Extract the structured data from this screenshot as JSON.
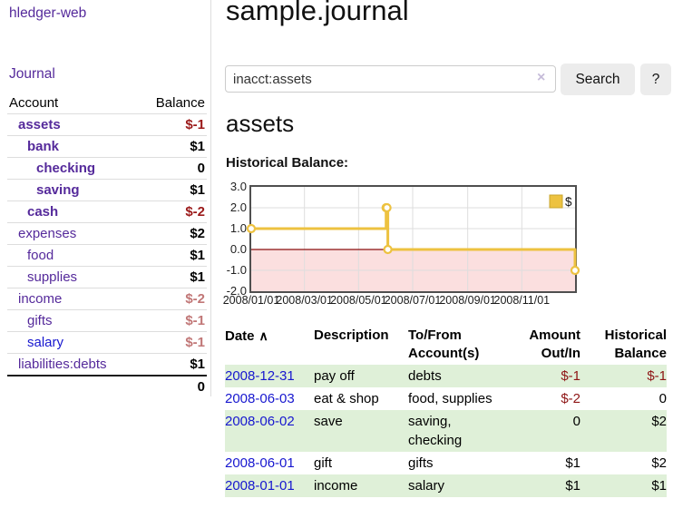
{
  "colors": {
    "link_purple": "#552a9b",
    "link_blue": "#1717cf",
    "negative_strong": "#9b1a1a",
    "negative_soft": "#c17777",
    "register_negative": "#8e1515",
    "stripe_green": "#dff0d8",
    "series_yellow": "#edc240"
  },
  "sidebar": {
    "brand": "hledger-web",
    "nav_journal": "Journal",
    "accounts_table": {
      "col_account": "Account",
      "col_balance": "Balance",
      "rows": [
        {
          "name": "assets",
          "depth": 1,
          "balance": "$-1",
          "bold": true,
          "neg": "strong"
        },
        {
          "name": "bank",
          "depth": 2,
          "balance": "$1",
          "bold": true
        },
        {
          "name": "checking",
          "depth": 3,
          "balance": "0",
          "bold": true
        },
        {
          "name": "saving",
          "depth": 3,
          "balance": "$1",
          "bold": true
        },
        {
          "name": "cash",
          "depth": 2,
          "balance": "$-2",
          "bold": true,
          "neg": "strong"
        },
        {
          "name": "expenses",
          "depth": 1,
          "balance": "$2"
        },
        {
          "name": "food",
          "depth": 2,
          "balance": "$1"
        },
        {
          "name": "supplies",
          "depth": 2,
          "balance": "$1"
        },
        {
          "name": "income",
          "depth": 1,
          "balance": "$-2",
          "neg": "soft"
        },
        {
          "name": "gifts",
          "depth": 2,
          "balance": "$-1",
          "neg": "soft"
        },
        {
          "name": "salary",
          "depth": 2,
          "balance": "$-1",
          "neg": "soft",
          "link_color": "blue"
        },
        {
          "name": "liabilities:debts",
          "depth": 1,
          "balance": "$1"
        }
      ],
      "total": "0"
    }
  },
  "main": {
    "title": "sample.journal",
    "search": {
      "value": "inacct:assets",
      "clear_label": "×",
      "submit_label": "Search",
      "help_label": "?"
    },
    "account_heading": "assets",
    "chart_heading": "Historical Balance:"
  },
  "chart_data": {
    "type": "line",
    "line_style": "step",
    "title": "Historical Balance",
    "grid": true,
    "legend_position": "top-right",
    "legend": [
      {
        "label": "$",
        "color": "#edc240"
      }
    ],
    "x_start": "2008-01-01",
    "x_end": "2008-12-31",
    "xticks": [
      "2008/01/01",
      "2008/03/01",
      "2008/05/01",
      "2008/07/01",
      "2008/09/01",
      "2008/11/01"
    ],
    "yticks": [
      "3.0",
      "2.0",
      "1.0",
      "0.0",
      "-1.0",
      "-2.0"
    ],
    "ylim": [
      -2,
      3
    ],
    "series": [
      {
        "name": "$",
        "color": "#edc240",
        "points": [
          {
            "date": "2008-01-01",
            "value": 1
          },
          {
            "date": "2008-06-01",
            "value": 2
          },
          {
            "date": "2008-06-02",
            "value": 2
          },
          {
            "date": "2008-06-03",
            "value": 0
          },
          {
            "date": "2008-12-31",
            "value": -1
          }
        ]
      }
    ],
    "negative_region": true,
    "negative_region_color": "#fbdfdf",
    "zero_line_color": "#8b0f0f",
    "grid_color": "#dedede",
    "border_color": "#4f4f4f"
  },
  "register": {
    "columns": {
      "date": "Date",
      "description": "Description",
      "accounts": "To/From Account(s)",
      "amount": "Amount Out/In",
      "balance": "Historical Balance"
    },
    "sort": {
      "column": "Date",
      "direction": "ascending",
      "icon": "∧"
    },
    "rows": [
      {
        "date": "2008-12-31",
        "description": "pay off",
        "accounts": "debts",
        "amount": "$-1",
        "balance": "$-1",
        "amount_neg": true,
        "balance_neg": true
      },
      {
        "date": "2008-06-03",
        "description": "eat & shop",
        "accounts": "food, supplies",
        "amount": "$-2",
        "balance": "0",
        "amount_neg": true
      },
      {
        "date": "2008-06-02",
        "description": "save",
        "accounts": "saving, checking",
        "amount": "0",
        "balance": "$2"
      },
      {
        "date": "2008-06-01",
        "description": "gift",
        "accounts": "gifts",
        "amount": "$1",
        "balance": "$2"
      },
      {
        "date": "2008-01-01",
        "description": "income",
        "accounts": "salary",
        "amount": "$1",
        "balance": "$1"
      }
    ]
  }
}
